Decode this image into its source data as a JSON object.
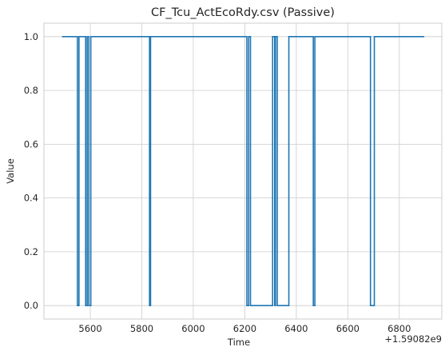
{
  "chart_data": {
    "type": "line",
    "title": "CF_Tcu_ActEcoRdy.csv (Passive)",
    "xlabel": "Time",
    "ylabel": "Value",
    "x_offset_label": "+1.59082e9",
    "xlim": [
      5420,
      6965
    ],
    "ylim": [
      -0.05,
      1.05
    ],
    "xticks": [
      5600,
      5800,
      6000,
      6200,
      6400,
      6600,
      6800
    ],
    "yticks": [
      0.0,
      0.2,
      0.4,
      0.6,
      0.8,
      1.0
    ],
    "xtick_labels": [
      "5600",
      "5800",
      "6000",
      "6200",
      "6400",
      "6600",
      "6800"
    ],
    "ytick_labels": [
      "0.0",
      "0.2",
      "0.4",
      "0.6",
      "0.8",
      "1.0"
    ],
    "grid": true,
    "series": [
      {
        "color": "#1f77b4",
        "step": "post",
        "x": [
          5490,
          5550,
          5556,
          5582,
          5588,
          5594,
          5602,
          5612,
          5830,
          5834,
          6208,
          6215,
          6222,
          6240,
          6308,
          6316,
          6319,
          6326,
          6330,
          6371,
          6466,
          6472,
          6688,
          6703,
          6897
        ],
        "y": [
          1,
          0,
          1,
          0,
          1,
          0,
          1,
          1,
          0,
          1,
          0,
          1,
          0,
          0,
          1,
          0,
          1,
          0,
          0,
          1,
          0,
          1,
          0,
          1,
          1
        ]
      }
    ]
  }
}
